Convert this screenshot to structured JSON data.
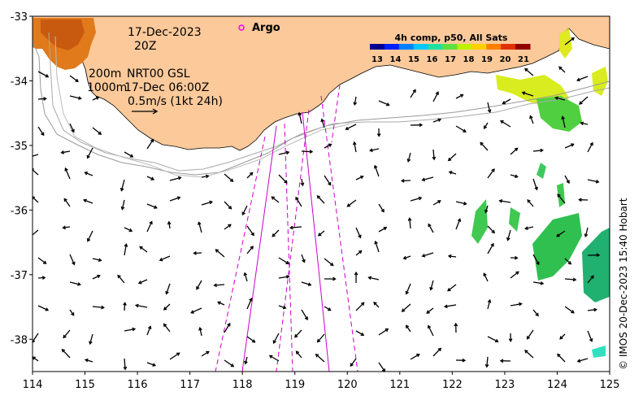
{
  "map": {
    "date": "17-Dec-2023",
    "hour": "20Z",
    "depth_label_1": "200m",
    "depth_label_2": "1000m",
    "product_label": "NRT00 GSL",
    "product_time": "17-Dec 06:00Z",
    "vector_scale_label": "0.5m/s (1kt 24h)",
    "argo_label": "Argo",
    "credit": "© IMOS 20-Dec-2023 15:40 Hobart",
    "x_ticks": [
      "114",
      "115",
      "116",
      "117",
      "118",
      "119",
      "120",
      "121",
      "122",
      "123",
      "124",
      "125"
    ],
    "y_ticks": [
      "-33",
      "-34",
      "-35",
      "-36",
      "-37",
      "-38"
    ],
    "lon_range": [
      114,
      125
    ],
    "lat_range": [
      -38.5,
      -33
    ],
    "land_color": "#fbc99a",
    "track_color": "#cc00cc",
    "argo_color": "#ff00ff"
  },
  "colorbar": {
    "title": "4h comp, p50, All Sats",
    "ticks": [
      "13",
      "14",
      "15",
      "16",
      "17",
      "18",
      "19",
      "20",
      "21"
    ],
    "colors": [
      "#00008f",
      "#0020ff",
      "#0080ff",
      "#00c8ff",
      "#20e0a0",
      "#60e040",
      "#c0f000",
      "#ffd000",
      "#ff8000",
      "#e03000",
      "#900000"
    ]
  }
}
